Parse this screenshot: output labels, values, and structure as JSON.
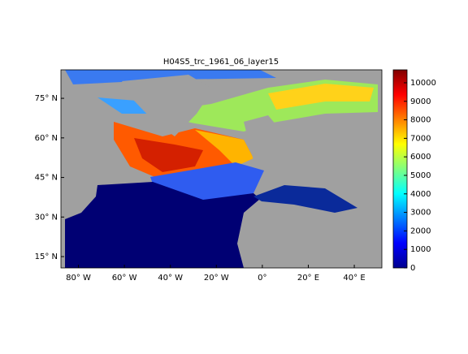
{
  "chart_data": {
    "type": "map",
    "title": "H04S5_trc_1961_06_layer15",
    "xlim": [
      -87.6,
      52
    ],
    "ylim": [
      10.7,
      85.8
    ],
    "xticks": [
      {
        "value": -80,
        "label": "80° W"
      },
      {
        "value": -60,
        "label": "60° W"
      },
      {
        "value": -40,
        "label": "40° W"
      },
      {
        "value": -20,
        "label": "20° W"
      },
      {
        "value": 0,
        "label": "0°"
      },
      {
        "value": 20,
        "label": "20° E"
      },
      {
        "value": 40,
        "label": "40° E"
      }
    ],
    "yticks": [
      {
        "value": 15,
        "label": "15° N"
      },
      {
        "value": 30,
        "label": "30° N"
      },
      {
        "value": 45,
        "label": "45° N"
      },
      {
        "value": 60,
        "label": "60° N"
      },
      {
        "value": 75,
        "label": "75° N"
      }
    ],
    "colorbar": {
      "colormap": "jet",
      "clim": [
        0,
        10700
      ],
      "ticks": [
        0,
        1000,
        2000,
        3000,
        4000,
        5000,
        6000,
        7000,
        8000,
        9000,
        10000
      ]
    }
  }
}
